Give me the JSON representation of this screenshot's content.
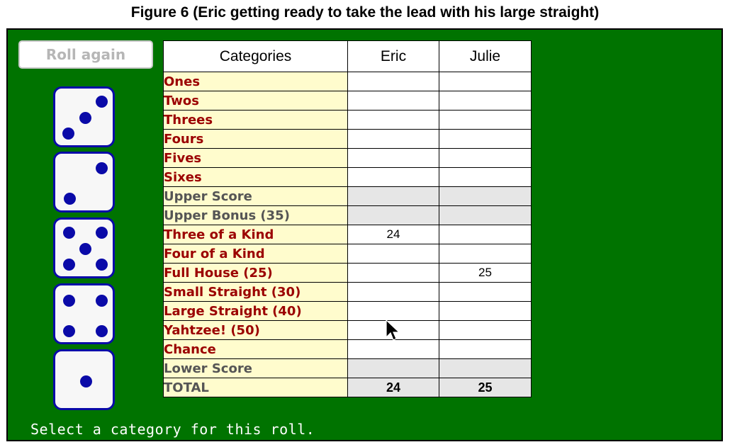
{
  "figure_title": "Figure 6 (Eric getting ready to take the lead with his large straight)",
  "roll_button": {
    "label": "Roll again",
    "enabled": false
  },
  "dice": [
    {
      "value": 3
    },
    {
      "value": 2
    },
    {
      "value": 5
    },
    {
      "value": 4
    },
    {
      "value": 1
    }
  ],
  "dice_colors": {
    "face": "#f7f7f7",
    "pip": "#0a0aa8"
  },
  "scorecard": {
    "header": {
      "categories": "Categories",
      "players": [
        "Eric",
        "Julie"
      ],
      "active_player": "Eric"
    },
    "rows": [
      {
        "label": "Ones",
        "kind": "category",
        "scores": [
          "",
          ""
        ]
      },
      {
        "label": "Twos",
        "kind": "category",
        "scores": [
          "",
          ""
        ]
      },
      {
        "label": "Threes",
        "kind": "category",
        "scores": [
          "",
          ""
        ]
      },
      {
        "label": "Fours",
        "kind": "category",
        "scores": [
          "",
          ""
        ]
      },
      {
        "label": "Fives",
        "kind": "category",
        "scores": [
          "",
          ""
        ]
      },
      {
        "label": "Sixes",
        "kind": "category",
        "scores": [
          "",
          ""
        ]
      },
      {
        "label": "Upper Score",
        "kind": "summary",
        "scores": [
          "",
          ""
        ]
      },
      {
        "label": "Upper Bonus (35)",
        "kind": "summary",
        "scores": [
          "",
          ""
        ]
      },
      {
        "label": "Three of a Kind",
        "kind": "category",
        "scores": [
          "24",
          ""
        ]
      },
      {
        "label": "Four of a Kind",
        "kind": "category",
        "scores": [
          "",
          ""
        ]
      },
      {
        "label": "Full House (25)",
        "kind": "category",
        "scores": [
          "",
          "25"
        ]
      },
      {
        "label": "Small Straight (30)",
        "kind": "category",
        "scores": [
          "",
          ""
        ]
      },
      {
        "label": "Large Straight (40)",
        "kind": "category",
        "scores": [
          "",
          ""
        ]
      },
      {
        "label": "Yahtzee! (50)",
        "kind": "category",
        "scores": [
          "",
          ""
        ]
      },
      {
        "label": "Chance",
        "kind": "category",
        "scores": [
          "",
          ""
        ]
      },
      {
        "label": "Lower Score",
        "kind": "summary",
        "scores": [
          "",
          ""
        ]
      },
      {
        "label": "TOTAL",
        "kind": "total",
        "scores": [
          "24",
          "25"
        ]
      }
    ]
  },
  "status_text": "Select a category for this roll.",
  "colors": {
    "table_felt": "#007300",
    "active_player_highlight": "#ffff00",
    "category_text": "#9b0000",
    "category_bg": "#fffccd"
  }
}
